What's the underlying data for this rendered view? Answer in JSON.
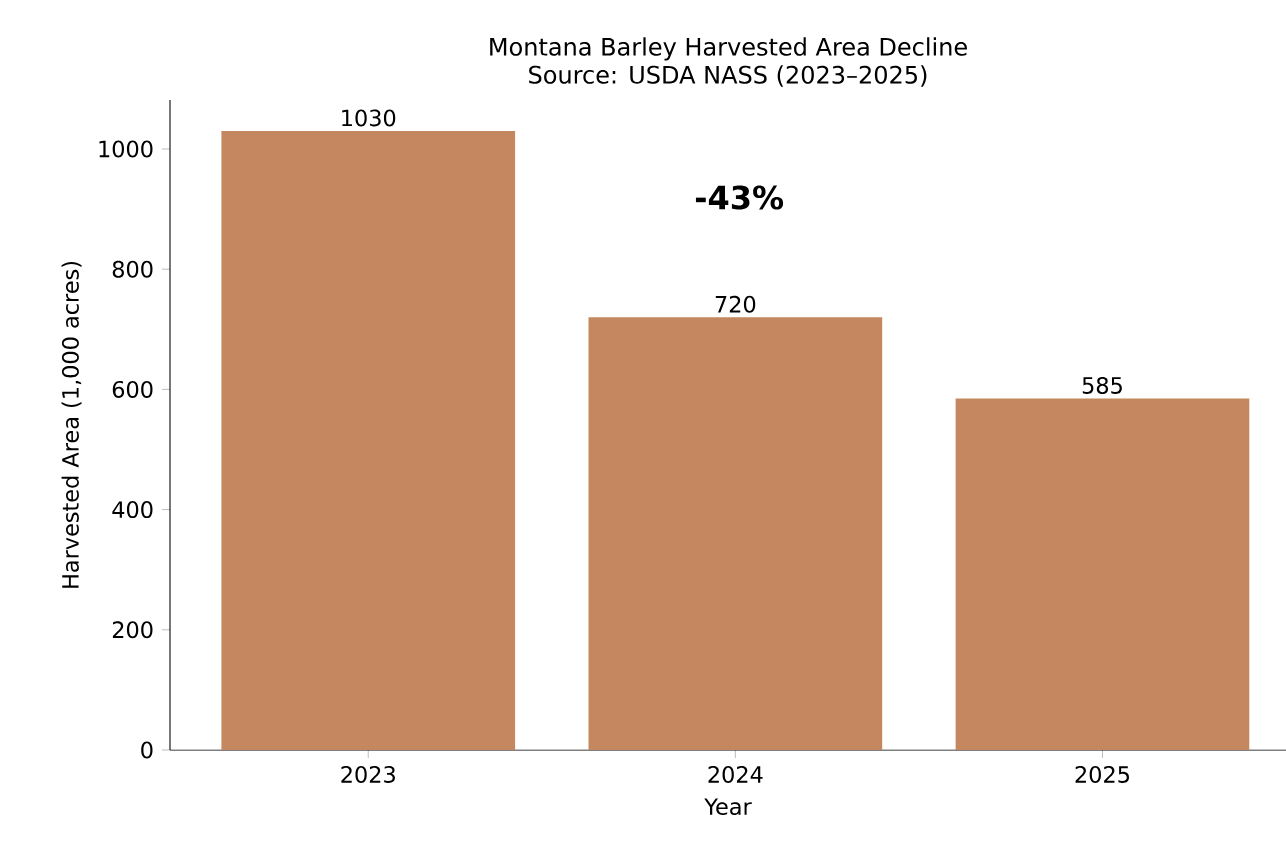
{
  "chart_data": {
    "type": "bar",
    "title": "Montana Barley Harvested Area Decline",
    "subtitle": "Source: USDA NASS (2023–2025)",
    "xlabel": "Year",
    "ylabel": "Harvested Area (1,000 acres)",
    "categories": [
      "2023",
      "2024",
      "2025"
    ],
    "values": [
      1030,
      720,
      585
    ],
    "color": "#c4875f",
    "ylim": [
      0,
      1081.5
    ],
    "yticks": [
      0,
      200,
      400,
      600,
      800,
      1000
    ],
    "data_labels": true,
    "grid": false,
    "annotations": [
      "**-43%**"
    ]
  }
}
